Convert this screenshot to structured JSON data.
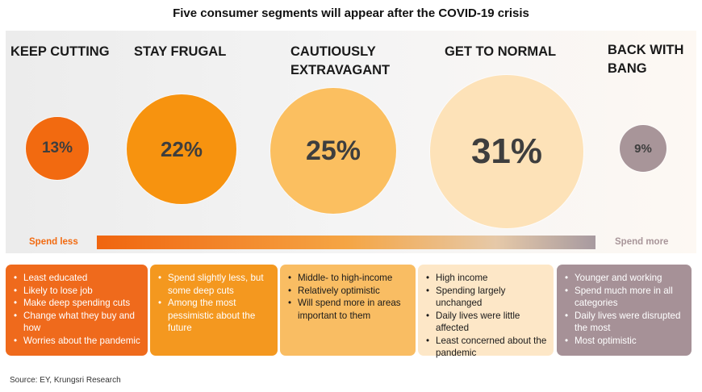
{
  "title": "Five consumer segments will appear after the COVID-19 crisis",
  "chart_data": {
    "type": "bubble",
    "title": "Five consumer segments will appear after the COVID-19 crisis",
    "categories": [
      "KEEP CUTTING",
      "STAY FRUGAL",
      "CAUTIOUSLY EXTRAVAGANT",
      "GET TO NORMAL",
      "BACK WITH BANG"
    ],
    "values": [
      13,
      22,
      25,
      31,
      9
    ],
    "value_labels": [
      "13%",
      "22%",
      "25%",
      "31%",
      "9%"
    ],
    "unit": "%",
    "colors": [
      "#f26a10",
      "#f7930f",
      "#fbbf60",
      "#fde2b8",
      "#a89599"
    ],
    "scale": {
      "left": "Spend less",
      "right": "Spend more"
    }
  },
  "segments": [
    {
      "name": "KEEP CUTTING",
      "label": "13%",
      "box_color": "#ef6a1c",
      "bullets": [
        "Least educated",
        "Likely to lose job",
        "Make deep spending cuts",
        "Change what they buy and how",
        "Worries about the pandemic"
      ]
    },
    {
      "name": "STAY FRUGAL",
      "label": "22%",
      "box_color": "#f4981f",
      "bullets": [
        "Spend slightly less, but some deep cuts",
        "Among the most pessimistic about the future"
      ]
    },
    {
      "name": "CAUTIOUSLY EXTRAVAGANT",
      "label": "25%",
      "box_color": "#f9bd63",
      "bullets": [
        "Middle- to high-income",
        "Relatively optimistic",
        "Will spend more in areas important to them"
      ]
    },
    {
      "name": "GET TO NORMAL",
      "label": "31%",
      "box_color": "#fde7c7",
      "bullets": [
        "High income",
        "Spending largely unchanged",
        "Daily lives were little affected",
        "Least concerned about the pandemic"
      ]
    },
    {
      "name": "BACK WITH BANG",
      "label": "9%",
      "box_color": "#a69197",
      "bullets": [
        "Younger and working",
        "Spend much more in all categories",
        "Daily lives were disrupted the most",
        "Most optimistic"
      ]
    }
  ],
  "spend_less": "Spend less",
  "spend_more": "Spend more",
  "source": "Source: EY, Krungsri Research"
}
